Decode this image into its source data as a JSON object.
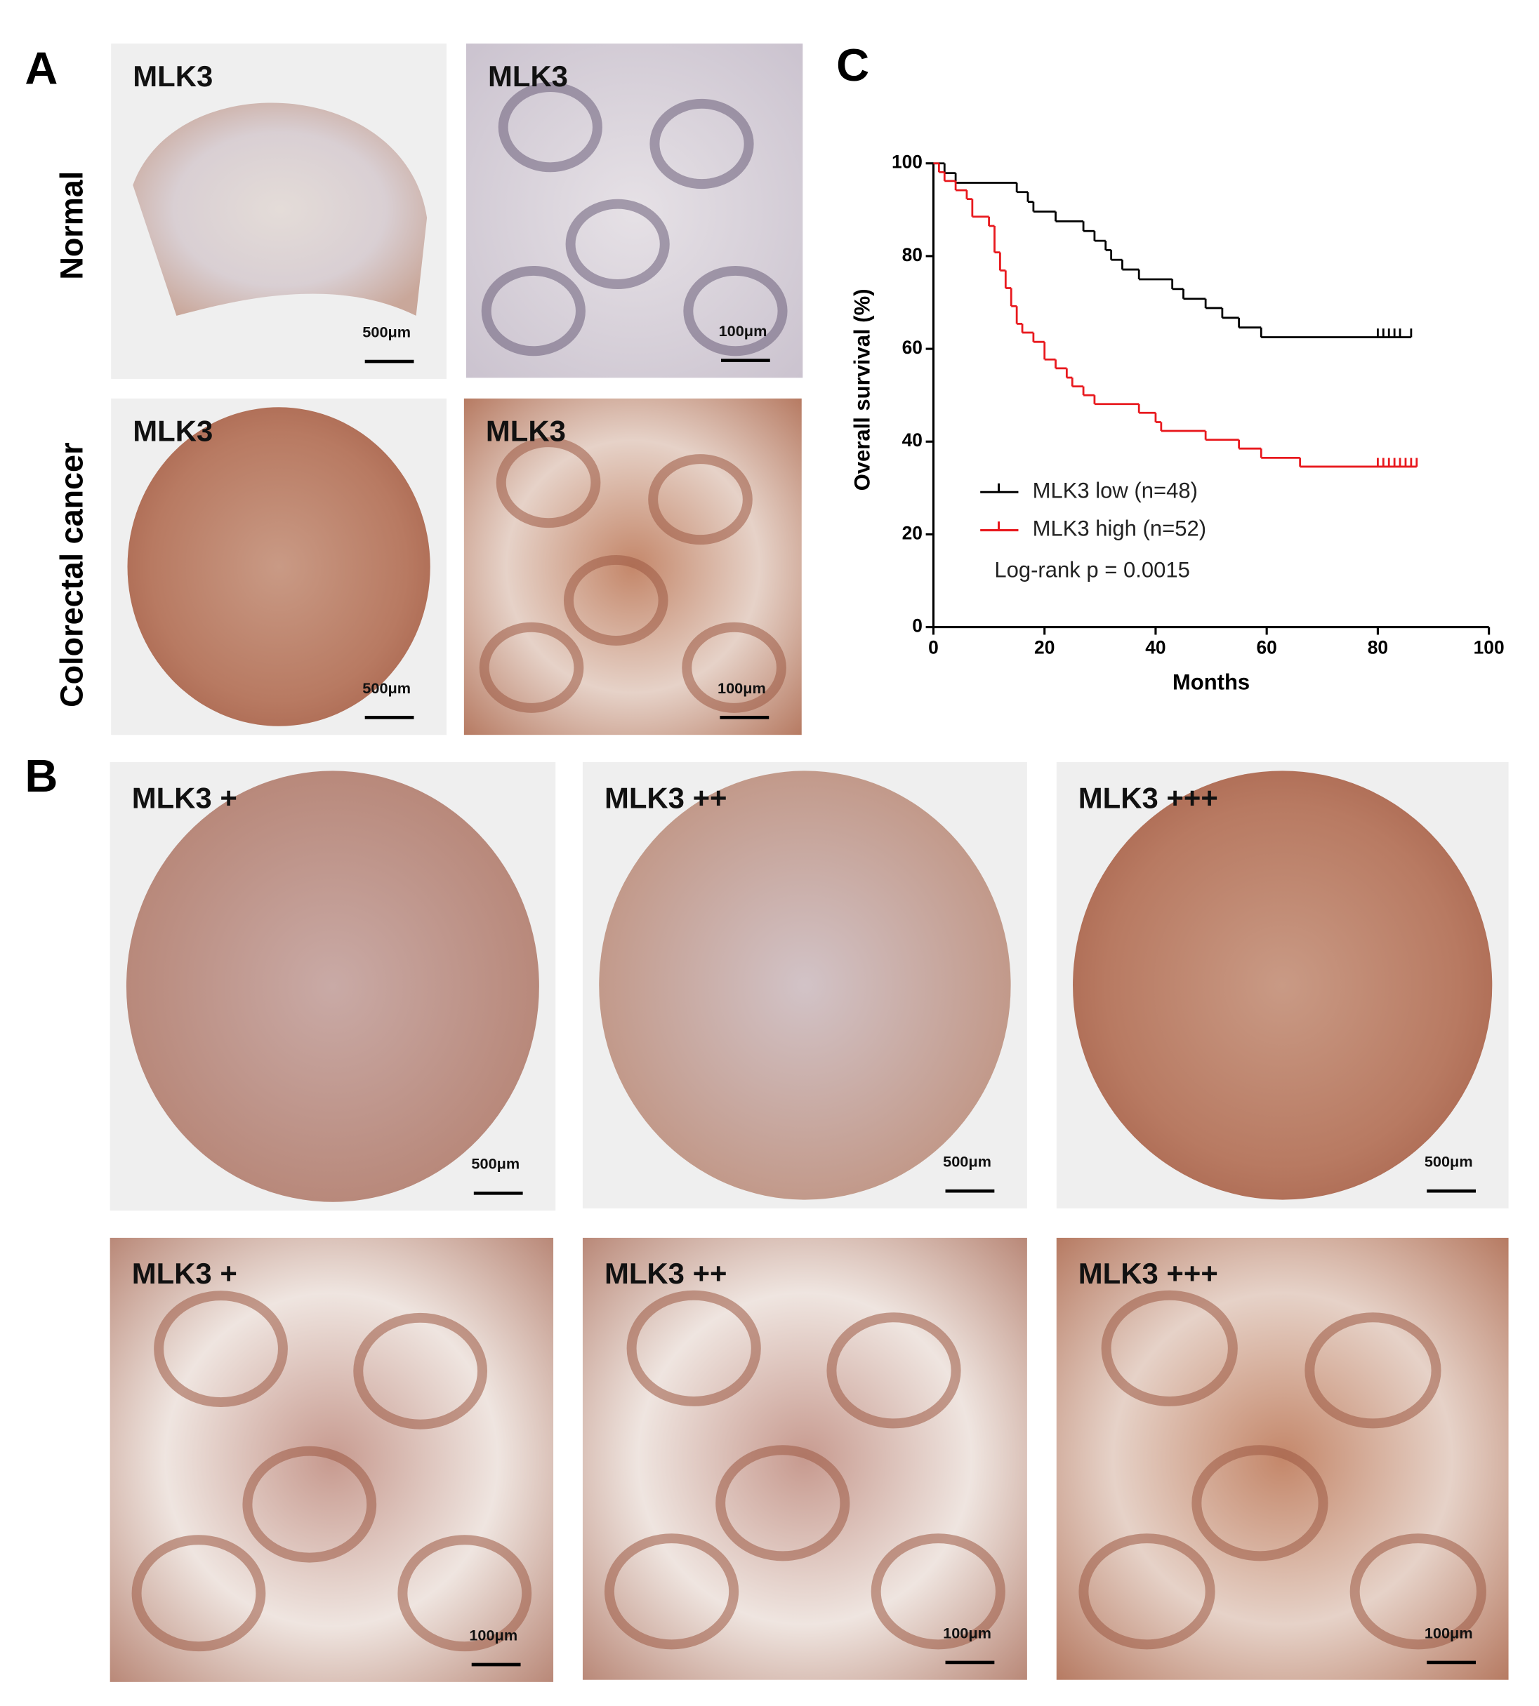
{
  "panel_labels": [
    "A",
    "B",
    "C"
  ],
  "panel_a": {
    "row_labels": [
      "Normal",
      "Colorectal cancer"
    ],
    "images": [
      {
        "label": "MLK3",
        "scale_bar": "500μm"
      },
      {
        "label": "MLK3",
        "scale_bar": "100μm"
      },
      {
        "label": "MLK3",
        "scale_bar": "500μm"
      },
      {
        "label": "MLK3",
        "scale_bar": "100μm"
      }
    ]
  },
  "panel_b": {
    "images": [
      {
        "label": "MLK3 +",
        "scale_bar": "500μm"
      },
      {
        "label": "MLK3 ++",
        "scale_bar": "500μm"
      },
      {
        "label": "MLK3 +++",
        "scale_bar": "500μm"
      },
      {
        "label": "MLK3 +",
        "scale_bar": "100μm"
      },
      {
        "label": "MLK3 ++",
        "scale_bar": "100μm"
      },
      {
        "label": "MLK3 +++",
        "scale_bar": "100μm"
      }
    ]
  },
  "chart_data": {
    "type": "step",
    "x_label": "Months",
    "y_label": "Overall survival (%)",
    "xlim": [
      0,
      100
    ],
    "ylim": [
      0,
      100
    ],
    "xticks": [
      0,
      20,
      40,
      60,
      80,
      100
    ],
    "yticks": [
      0,
      20,
      40,
      60,
      80,
      100
    ],
    "annotation": "Log-rank p = 0.0015",
    "series": [
      {
        "name": "MLK3 low (n=48)",
        "color": "#000000",
        "x": [
          0,
          2,
          4,
          15,
          17,
          18,
          22,
          27,
          29,
          31,
          32,
          34,
          37,
          43,
          45,
          49,
          52,
          55,
          59,
          86
        ],
        "values": [
          100,
          97.9,
          95.8,
          93.8,
          91.7,
          89.6,
          87.5,
          85.4,
          83.3,
          81.3,
          79.2,
          77.1,
          75,
          72.9,
          70.8,
          68.8,
          66.7,
          64.6,
          62.5,
          62.5
        ],
        "censored": [
          80,
          81,
          82,
          83,
          84,
          86
        ]
      },
      {
        "name": "MLK3 high (n=52)",
        "color": "#e8191e",
        "x": [
          0,
          1,
          2,
          4,
          6,
          7,
          10,
          11,
          12,
          13,
          14,
          15,
          16,
          18,
          20,
          22,
          24,
          25,
          27,
          29,
          37,
          40,
          41,
          49,
          55,
          59,
          66,
          87
        ],
        "values": [
          100,
          98.1,
          96.2,
          94.2,
          92.3,
          88.5,
          86.5,
          80.8,
          76.9,
          73.1,
          69.2,
          65.4,
          63.5,
          61.5,
          57.7,
          55.8,
          53.8,
          51.9,
          50,
          48.1,
          46.2,
          44.2,
          42.3,
          40.4,
          38.5,
          36.5,
          34.6,
          34.6
        ],
        "censored": [
          80,
          81,
          82,
          83,
          84,
          85,
          86,
          87
        ]
      }
    ]
  }
}
